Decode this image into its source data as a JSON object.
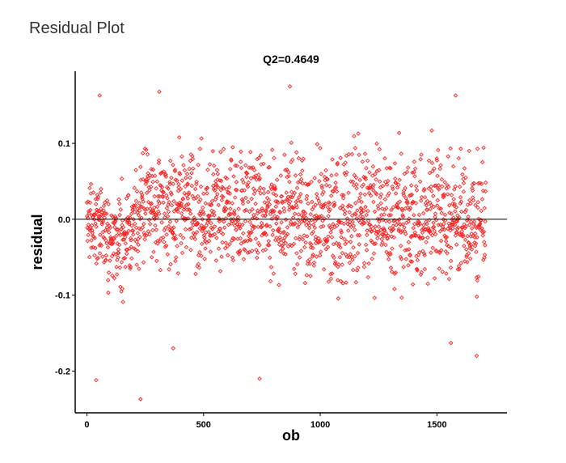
{
  "page": {
    "heading": "Residual Plot"
  },
  "chart_data": {
    "type": "scatter",
    "title": "Q2=0.4649",
    "xlabel": "ob",
    "ylabel": "residual",
    "xlim": [
      -50,
      1800
    ],
    "ylim": [
      -0.255,
      0.195
    ],
    "xticks": [
      0,
      500,
      1000,
      1500
    ],
    "xtick_labels": [
      "0",
      "500",
      "1000",
      "1500"
    ],
    "yticks": [
      0.1,
      0.0,
      -0.1,
      -0.2
    ],
    "ytick_labels": [
      "0.1",
      "0.0",
      "-0.1",
      "-0.2"
    ],
    "reference_line_y": 0,
    "grid": false,
    "legend": "none",
    "marker": "open-diamond",
    "marker_color": "#ff2020",
    "n_points": 1710,
    "notable_points": [
      {
        "x": 40,
        "y": -0.212
      },
      {
        "x": 230,
        "y": -0.237
      },
      {
        "x": 370,
        "y": -0.17
      },
      {
        "x": 740,
        "y": -0.21
      },
      {
        "x": 870,
        "y": 0.175
      },
      {
        "x": 1580,
        "y": 0.163
      },
      {
        "x": 1670,
        "y": -0.18
      },
      {
        "x": 55,
        "y": 0.163
      },
      {
        "x": 310,
        "y": 0.168
      },
      {
        "x": 1560,
        "y": -0.163
      }
    ],
    "envelope": [
      {
        "x": 0,
        "lo": -0.06,
        "hi": 0.06
      },
      {
        "x": 150,
        "lo": -0.14,
        "hi": 0.08
      },
      {
        "x": 250,
        "lo": -0.09,
        "hi": 0.13
      },
      {
        "x": 400,
        "lo": -0.1,
        "hi": 0.12
      },
      {
        "x": 700,
        "lo": -0.1,
        "hi": 0.13
      },
      {
        "x": 1000,
        "lo": -0.12,
        "hi": 0.13
      },
      {
        "x": 1300,
        "lo": -0.12,
        "hi": 0.13
      },
      {
        "x": 1700,
        "lo": -0.13,
        "hi": 0.12
      }
    ]
  }
}
